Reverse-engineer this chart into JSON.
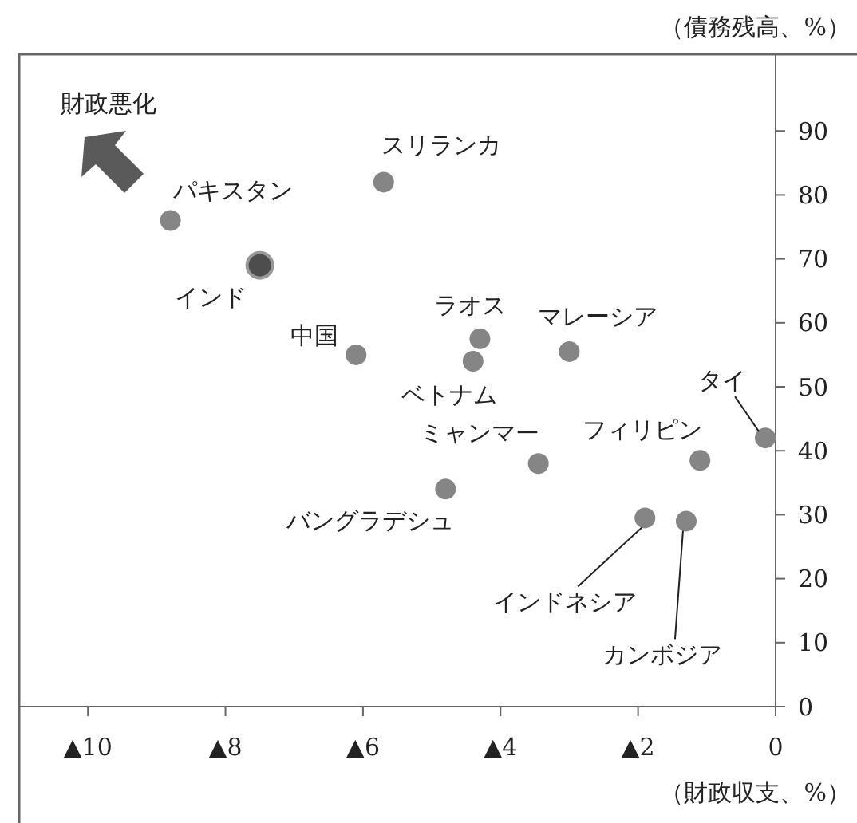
{
  "chart_data": {
    "type": "scatter",
    "xlabel": "（財政収支、%）",
    "ylabel": "（債務残高、%）",
    "marker": "circle",
    "xlim": [
      -11,
      0
    ],
    "xticks": [
      {
        "value": -10,
        "label": "▲10"
      },
      {
        "value": -8,
        "label": "▲8"
      },
      {
        "value": -6,
        "label": "▲6"
      },
      {
        "value": -4,
        "label": "▲4"
      },
      {
        "value": -2,
        "label": "▲2"
      },
      0
    ],
    "ylim": [
      0,
      102
    ],
    "yticks": [
      0,
      10,
      20,
      30,
      40,
      50,
      60,
      70,
      80,
      90
    ],
    "series": [
      {
        "color": "#858585",
        "x": [
          -8.8,
          -5.7,
          -6.1,
          -4.3,
          -4.4,
          -3.0,
          -0.15,
          -1.1,
          -3.45,
          -4.8,
          -1.9,
          -1.3
        ],
        "values": [
          76,
          82,
          55,
          57.5,
          54,
          55.5,
          42,
          38.5,
          38,
          34,
          29.5,
          29
        ]
      },
      {
        "color": "#4d4d4d",
        "x": [
          -7.5
        ],
        "values": [
          69
        ]
      }
    ],
    "annotations": [
      "財政悪化",
      {
        "text": "パキスタン",
        "x": -8.8,
        "y": 76
      },
      {
        "text": "スリランカ",
        "x": -5.7,
        "y": 82
      },
      {
        "text": "インド",
        "x": -7.5,
        "y": 69
      },
      {
        "text": "中国",
        "x": -6.1,
        "y": 55
      },
      {
        "text": "ラオス",
        "x": -4.3,
        "y": 57.5
      },
      {
        "text": "ベトナム",
        "x": -4.4,
        "y": 54
      },
      {
        "text": "マレーシア",
        "x": -3.0,
        "y": 55.5
      },
      {
        "text": "タイ",
        "x": -0.15,
        "y": 42
      },
      {
        "text": "フィリピン",
        "x": -1.1,
        "y": 38.5
      },
      {
        "text": "ミャンマー",
        "x": -3.45,
        "y": 38
      },
      {
        "text": "バングラデシュ",
        "x": -4.8,
        "y": 34
      },
      {
        "text": "インドネシア",
        "x": -1.9,
        "y": 29.5
      },
      {
        "text": "カンボジア",
        "x": -1.3,
        "y": 29
      }
    ]
  }
}
